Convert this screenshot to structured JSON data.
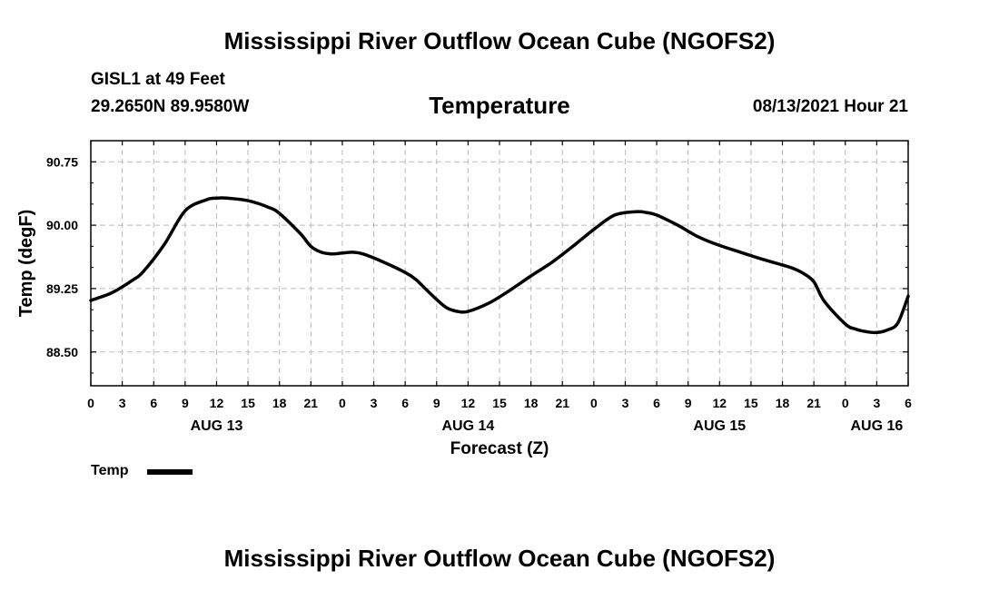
{
  "header": {
    "title": "Mississippi River Outflow Ocean Cube (NGOFS2)",
    "station": "GISL1 at 49 Feet",
    "coords": "29.2650N  89.9580W",
    "variable": "Temperature",
    "datetime": "08/13/2021 Hour 21"
  },
  "footer": {
    "title": "Mississippi River Outflow Ocean Cube (NGOFS2)"
  },
  "legend": {
    "label": "Temp",
    "color": "#000000"
  },
  "chart_data": {
    "type": "line",
    "title": "Temperature",
    "xlabel": "Forecast (Z)",
    "ylabel": "Temp (degF)",
    "xlim": [
      0,
      78
    ],
    "ylim": [
      88.1,
      91.0
    ],
    "grid": true,
    "yticks": [
      88.5,
      89.25,
      90.0,
      90.75
    ],
    "ytick_labels": [
      "88.50",
      "89.25",
      "90.00",
      "90.75"
    ],
    "xticks": [
      0,
      3,
      6,
      9,
      12,
      15,
      18,
      21,
      24,
      27,
      30,
      33,
      36,
      39,
      42,
      45,
      48,
      51,
      54,
      57,
      60,
      63,
      66,
      69,
      72,
      75,
      78
    ],
    "xtick_labels": [
      "0",
      "3",
      "6",
      "9",
      "12",
      "15",
      "18",
      "21",
      "0",
      "3",
      "6",
      "9",
      "12",
      "15",
      "18",
      "21",
      "0",
      "3",
      "6",
      "9",
      "12",
      "15",
      "18",
      "21",
      "0",
      "3",
      "6"
    ],
    "date_labels": [
      {
        "x": 12,
        "label": "AUG 13"
      },
      {
        "x": 36,
        "label": "AUG 14"
      },
      {
        "x": 60,
        "label": "AUG 15"
      },
      {
        "x": 75,
        "label": "AUG 16"
      }
    ],
    "series": [
      {
        "name": "Temp",
        "x": [
          0,
          2,
          4,
          5,
          7,
          9,
          11,
          12,
          13,
          15,
          17,
          18,
          20,
          21,
          22,
          23,
          24,
          25,
          26,
          28,
          30,
          31,
          32,
          33,
          34,
          35,
          36,
          38,
          40,
          42,
          44,
          46,
          48,
          50,
          52,
          53,
          54,
          56,
          58,
          60,
          62,
          64,
          66,
          67,
          68,
          69,
          70,
          72,
          73,
          74,
          75,
          76,
          77,
          78
        ],
        "y": [
          89.11,
          89.2,
          89.35,
          89.45,
          89.77,
          90.17,
          90.3,
          90.32,
          90.32,
          90.29,
          90.21,
          90.14,
          89.9,
          89.75,
          89.68,
          89.66,
          89.67,
          89.68,
          89.66,
          89.56,
          89.44,
          89.36,
          89.24,
          89.12,
          89.02,
          88.98,
          88.98,
          89.08,
          89.23,
          89.4,
          89.56,
          89.75,
          89.95,
          90.12,
          90.16,
          90.15,
          90.12,
          90.0,
          89.86,
          89.76,
          89.68,
          89.6,
          89.53,
          89.49,
          89.43,
          89.33,
          89.1,
          88.83,
          88.77,
          88.74,
          88.73,
          88.76,
          88.84,
          89.16
        ]
      }
    ]
  }
}
